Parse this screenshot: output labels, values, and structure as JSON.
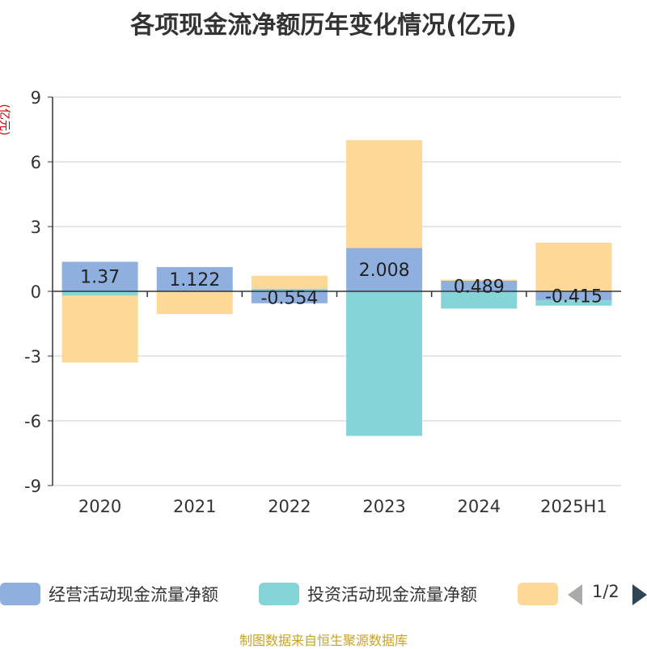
{
  "chart_data": {
    "type": "bar",
    "stacked": true,
    "title": "各项现金流净额历年变化情况(亿元)",
    "ylabel": "(亿元)",
    "ylim": [
      -9,
      9
    ],
    "yticks": [
      9,
      6,
      3,
      0,
      -3,
      -6,
      -9
    ],
    "grid": true,
    "legend_position": "bottom",
    "categories": [
      "2020",
      "2021",
      "2022",
      "2023",
      "2024",
      "2025H1"
    ],
    "series": [
      {
        "name": "经营活动现金流量净额",
        "color": "#8fafde",
        "values": [
          1.37,
          1.122,
          -0.554,
          2.008,
          0.489,
          -0.415
        ],
        "labels": [
          "1.37",
          "1.122",
          "-0.554",
          "2.008",
          "0.489",
          "-0.415"
        ]
      },
      {
        "name": "投资活动现金流量净额",
        "color": "#85d5d8",
        "values": [
          -0.2,
          0.0,
          0.12,
          -6.7,
          -0.8,
          -0.25
        ]
      },
      {
        "name": "",
        "color": "#fdd897",
        "values": [
          -3.1,
          -1.05,
          0.6,
          5.0,
          0.05,
          2.25
        ]
      }
    ]
  },
  "legend": {
    "items": [
      "经营活动现金流量净额",
      "投资活动现金流量净额",
      ""
    ],
    "page_indicator": "1/2"
  },
  "source_note": "制图数据来自恒生聚源数据库"
}
